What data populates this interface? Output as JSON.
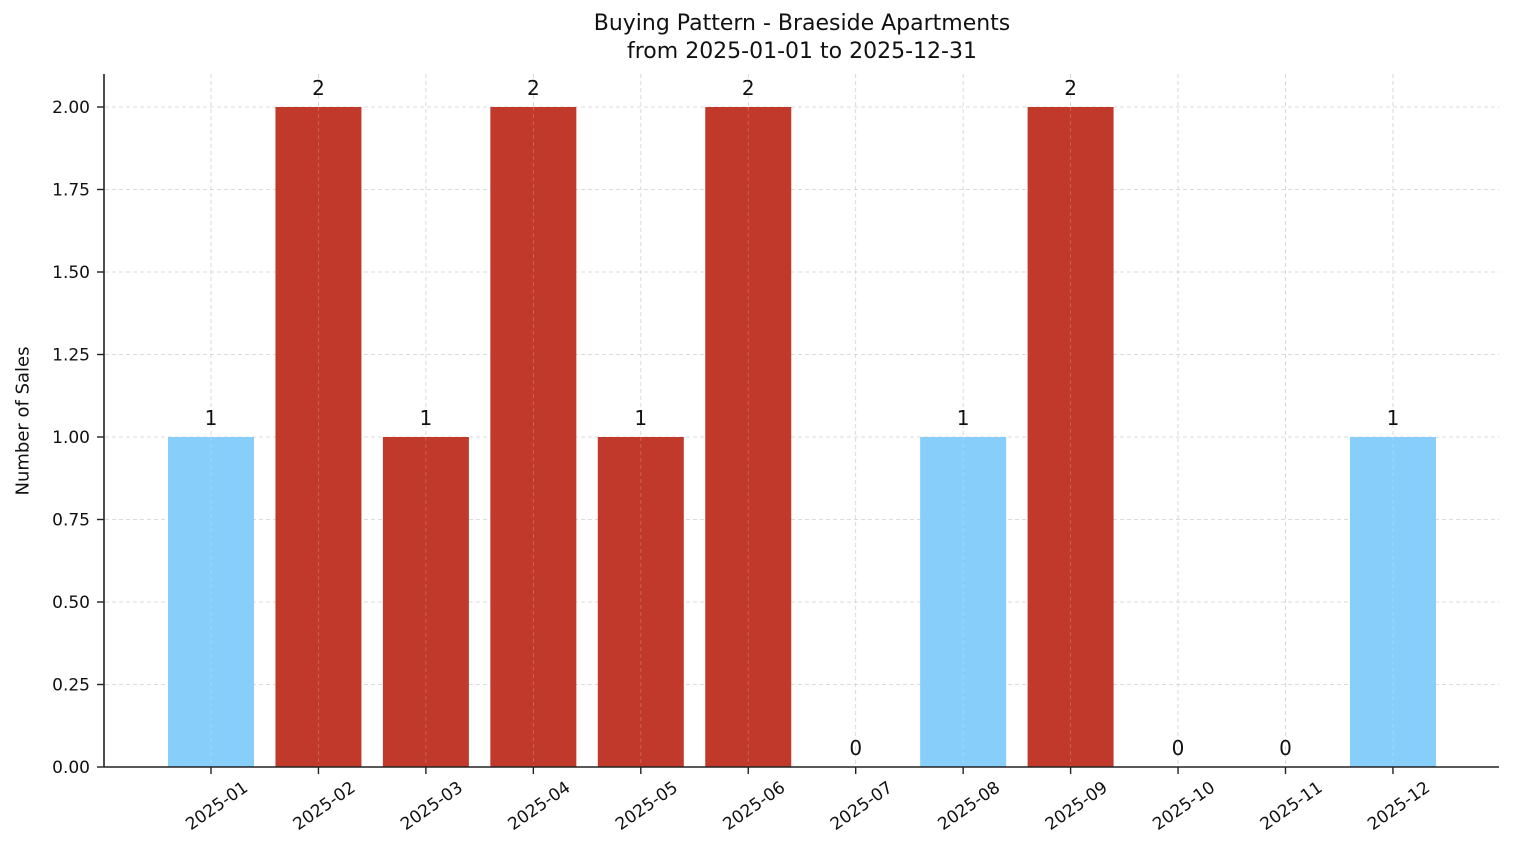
{
  "chart_data": {
    "type": "bar",
    "title": "Buying Pattern - Braeside Apartments",
    "subtitle": "from 2025-01-01 to 2025-12-31",
    "xlabel": "",
    "ylabel": "Number of Sales",
    "categories": [
      "2025-01",
      "2025-02",
      "2025-03",
      "2025-04",
      "2025-05",
      "2025-06",
      "2025-07",
      "2025-08",
      "2025-09",
      "2025-10",
      "2025-11",
      "2025-12"
    ],
    "values": [
      1,
      2,
      1,
      2,
      1,
      2,
      0,
      1,
      2,
      0,
      0,
      1
    ],
    "bar_colors": [
      "#87CEFA",
      "#C0392B",
      "#C0392B",
      "#C0392B",
      "#C0392B",
      "#C0392B",
      "#87CEFA",
      "#87CEFA",
      "#C0392B",
      "#87CEFA",
      "#87CEFA",
      "#87CEFA"
    ],
    "data_labels": [
      "1",
      "2",
      "1",
      "2",
      "1",
      "2",
      "0",
      "1",
      "2",
      "0",
      "0",
      "1"
    ],
    "ylim": [
      0,
      2.1
    ],
    "yticks": [
      "0.00",
      "0.25",
      "0.50",
      "0.75",
      "1.00",
      "1.25",
      "1.50",
      "1.75",
      "2.00"
    ],
    "ytick_values": [
      0,
      0.25,
      0.5,
      0.75,
      1.0,
      1.25,
      1.5,
      1.75,
      2.0
    ],
    "grid": true,
    "legend": null
  }
}
